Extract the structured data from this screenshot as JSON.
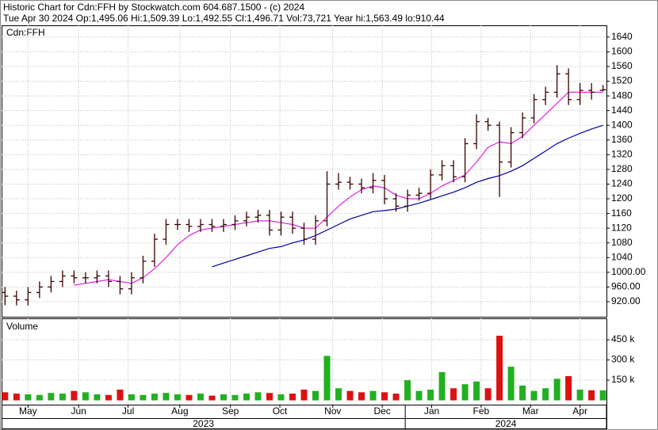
{
  "chart_data": [
    {
      "type": "ohlc",
      "title": "Historic Chart for Cdn:FFH by Stockwatch.com 604.687.1500 - (c) 2024",
      "subtitle": "Tue Apr 30 2024   Op:1,495.06   Hi:1,509.39   Lo:1,492.55   Cl:1,496.71   Vol:73,721   Year hi:1,563.49   lo:910.44",
      "label": "Cdn:FFH",
      "color": "#3a0000",
      "x": [
        0,
        1,
        2,
        3,
        4,
        5,
        6,
        7,
        8,
        9,
        10,
        11,
        12,
        13,
        14,
        15,
        16,
        17,
        18,
        19,
        20,
        21,
        22,
        23,
        24,
        25,
        26,
        27,
        28,
        29,
        30,
        31,
        32,
        33,
        34,
        35,
        36,
        37,
        38,
        39,
        40,
        41,
        42,
        43,
        44,
        45,
        46,
        47,
        48,
        49,
        50,
        51,
        52
      ],
      "open": [
        945,
        935,
        925,
        945,
        960,
        975,
        990,
        985,
        985,
        990,
        975,
        955,
        985,
        1030,
        1090,
        1130,
        1130,
        1125,
        1130,
        1125,
        1130,
        1140,
        1150,
        1155,
        1115,
        1150,
        1120,
        1090,
        1140,
        1240,
        1245,
        1240,
        1230,
        1250,
        1200,
        1180,
        1210,
        1215,
        1265,
        1290,
        1260,
        1350,
        1410,
        1400,
        1300,
        1380,
        1420,
        1470,
        1490,
        1540,
        1470,
        1495,
        1495.06
      ],
      "high": [
        960,
        950,
        960,
        975,
        990,
        1005,
        1005,
        1000,
        1005,
        1005,
        990,
        1000,
        1045,
        1105,
        1145,
        1145,
        1145,
        1145,
        1145,
        1145,
        1155,
        1165,
        1170,
        1170,
        1165,
        1165,
        1135,
        1155,
        1275,
        1270,
        1260,
        1255,
        1270,
        1265,
        1215,
        1225,
        1230,
        1280,
        1305,
        1305,
        1365,
        1430,
        1420,
        1410,
        1395,
        1435,
        1485,
        1505,
        1563.49,
        1555,
        1515,
        1515,
        1509.39
      ],
      "low": [
        910.44,
        910,
        910,
        930,
        945,
        960,
        970,
        970,
        970,
        960,
        940,
        940,
        970,
        1015,
        1075,
        1115,
        1110,
        1110,
        1110,
        1110,
        1115,
        1125,
        1135,
        1100,
        1100,
        1105,
        1075,
        1075,
        1125,
        1225,
        1225,
        1215,
        1215,
        1185,
        1165,
        1165,
        1195,
        1200,
        1250,
        1245,
        1245,
        1335,
        1385,
        1205,
        1285,
        1365,
        1405,
        1455,
        1475,
        1455,
        1455,
        1470,
        1492.55
      ],
      "close": [
        935,
        925,
        945,
        960,
        975,
        990,
        985,
        985,
        990,
        975,
        955,
        985,
        1030,
        1090,
        1130,
        1130,
        1125,
        1130,
        1125,
        1130,
        1140,
        1150,
        1155,
        1115,
        1150,
        1120,
        1090,
        1140,
        1240,
        1245,
        1240,
        1230,
        1250,
        1200,
        1180,
        1210,
        1215,
        1265,
        1290,
        1260,
        1350,
        1410,
        1400,
        1300,
        1380,
        1420,
        1470,
        1490,
        1540,
        1470,
        1495,
        1490,
        1496.71
      ],
      "lines": [
        {
          "color": "#e020e0",
          "values": [
            null,
            null,
            null,
            null,
            null,
            null,
            965,
            970,
            975,
            980,
            975,
            970,
            985,
            1010,
            1040,
            1075,
            1100,
            1115,
            1120,
            1125,
            1130,
            1135,
            1140,
            1140,
            1135,
            1130,
            1120,
            1120,
            1150,
            1180,
            1205,
            1225,
            1235,
            1230,
            1210,
            1200,
            1200,
            1215,
            1235,
            1250,
            1265,
            1300,
            1340,
            1355,
            1350,
            1370,
            1400,
            1430,
            1460,
            1490,
            1490,
            1490,
            1490
          ]
        },
        {
          "color": "#0000a0",
          "values": [
            null,
            null,
            null,
            null,
            null,
            null,
            null,
            null,
            null,
            null,
            null,
            null,
            null,
            null,
            null,
            null,
            null,
            null,
            1015,
            1025,
            1035,
            1045,
            1055,
            1065,
            1070,
            1080,
            1088,
            1100,
            1115,
            1130,
            1145,
            1155,
            1165,
            1168,
            1172,
            1180,
            1188,
            1198,
            1208,
            1218,
            1230,
            1245,
            1255,
            1263,
            1275,
            1290,
            1310,
            1330,
            1350,
            1365,
            1378,
            1390,
            1400
          ]
        }
      ],
      "xlim": [
        -0.3,
        52.3
      ],
      "ylim": [
        879,
        1672
      ],
      "yticks": [
        1640,
        1600,
        1560,
        1520,
        1480,
        1440,
        1400,
        1360,
        1320,
        1280,
        1240,
        1200,
        1160,
        1120,
        1080,
        1040,
        {
          "value": 1000,
          "label": "1000.00"
        },
        {
          "value": 960,
          "label": "960.00"
        },
        {
          "value": 920,
          "label": "920.00"
        }
      ],
      "grid": true
    },
    {
      "type": "bar",
      "label": "Volume",
      "up_color": "#22b022",
      "down_color": "#dd1111",
      "values": [
        60000,
        50000,
        45000,
        40000,
        55000,
        50000,
        70000,
        60000,
        45000,
        40000,
        80000,
        45000,
        40000,
        50000,
        55000,
        45000,
        40000,
        50000,
        35000,
        45000,
        40000,
        50000,
        60000,
        55000,
        45000,
        50000,
        80000,
        70000,
        330000,
        90000,
        70000,
        60000,
        70000,
        60000,
        50000,
        150000,
        70000,
        80000,
        210000,
        90000,
        120000,
        140000,
        90000,
        480000,
        250000,
        110000,
        70000,
        90000,
        160000,
        180000,
        80000,
        75000,
        73721
      ],
      "ylim": [
        -32000,
        609000
      ],
      "yticks": [
        {
          "value": 450000,
          "label": "450 k"
        },
        {
          "value": 300000,
          "label": "300 k"
        },
        {
          "value": 150000,
          "label": "150 k"
        }
      ],
      "xticks": [
        {
          "value": 2,
          "label": "May"
        },
        {
          "value": 6.4,
          "label": "Jun"
        },
        {
          "value": 10.7,
          "label": "Jul"
        },
        {
          "value": 15.2,
          "label": "Aug"
        },
        {
          "value": 19.6,
          "label": "Sep"
        },
        {
          "value": 23.9,
          "label": "Oct"
        },
        {
          "value": 28.5,
          "label": "Nov"
        },
        {
          "value": 32.8,
          "label": "Dec"
        },
        {
          "value": 37.1,
          "label": "Jan"
        },
        {
          "value": 41.4,
          "label": "Feb"
        },
        {
          "value": 45.7,
          "label": "Mar"
        },
        {
          "value": 50,
          "label": "Apr"
        }
      ],
      "xgroups": [
        {
          "label": "2023",
          "start": -0.3,
          "end": 34.8
        },
        {
          "label": "2024",
          "start": 34.8,
          "end": 52.3
        }
      ],
      "grid": true
    }
  ]
}
